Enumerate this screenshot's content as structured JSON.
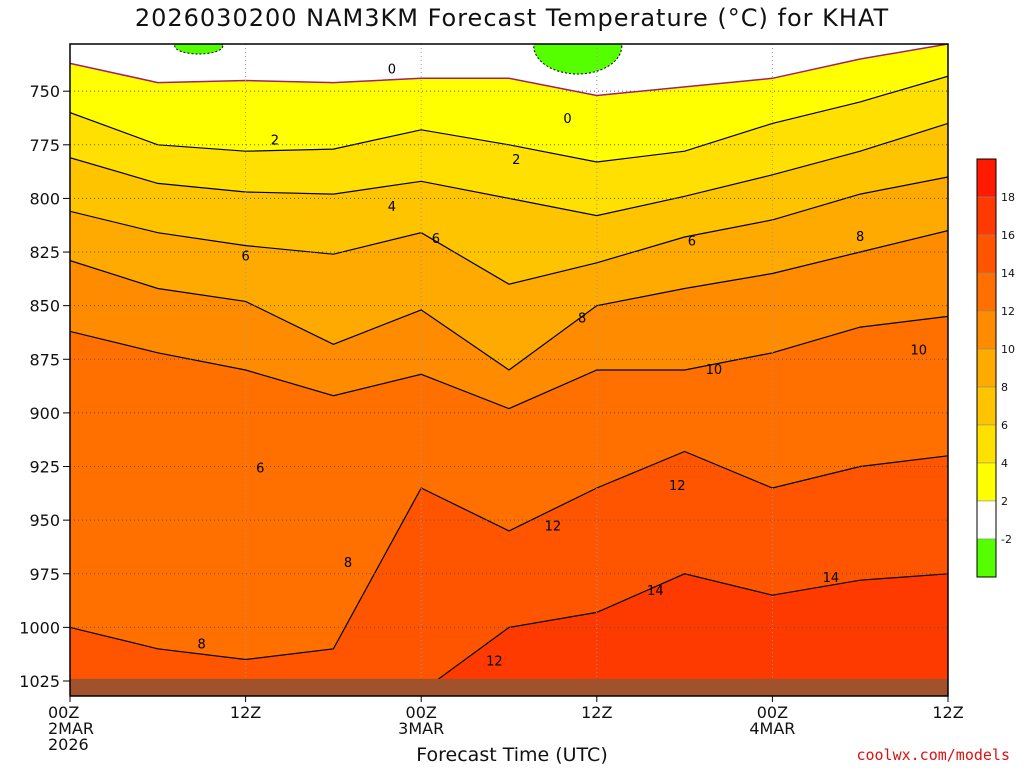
{
  "chart_data": {
    "type": "heatmap",
    "title": "2026030200 NAM3KM Forecast Temperature (°C) for KHAT",
    "xlabel": "Forecast Time (UTC)",
    "ylabel": "",
    "x_ticks": [
      {
        "lines": [
          "00Z",
          "2MAR",
          "2026"
        ]
      },
      {
        "lines": [
          "12Z"
        ]
      },
      {
        "lines": [
          "00Z",
          "3MAR"
        ]
      },
      {
        "lines": [
          "12Z"
        ]
      },
      {
        "lines": [
          "00Z",
          "4MAR"
        ]
      },
      {
        "lines": [
          "12Z"
        ]
      }
    ],
    "x_tick_hours": [
      0,
      12,
      24,
      36,
      48,
      60
    ],
    "xlim": [
      0,
      60
    ],
    "y_ticks": [
      750,
      775,
      800,
      825,
      850,
      875,
      900,
      925,
      950,
      975,
      1000,
      1025
    ],
    "ylim": [
      1032,
      728
    ],
    "ground_below_hpa": 1024,
    "grid": true,
    "colorbar": {
      "labels": [
        "18",
        "16",
        "14",
        "12",
        "10",
        "8",
        "6",
        "4",
        "2",
        "-2"
      ],
      "colors": [
        "#ff1a00",
        "#ff3a00",
        "#ff5500",
        "#ff7000",
        "#ff8c00",
        "#ffaa00",
        "#ffc400",
        "#ffe000",
        "#ffff00",
        "#ffffff",
        "#55ff00"
      ],
      "placement": "right"
    },
    "band_colors": {
      "lt0": "#ffffff",
      "b0_2": "#ffff00",
      "b2_4": "#ffe000",
      "b4_6": "#ffc400",
      "b6_8": "#ffaa00",
      "b8_10": "#ff8c00",
      "b10_12": "#ff7000",
      "b12_14": "#ff5500",
      "b14_16": "#ff3a00",
      "neg2": "#55ff00",
      "ground": "#a0522d"
    },
    "contours_hpa_by_hour": {
      "hours": [
        0,
        6,
        12,
        18,
        24,
        30,
        36,
        42,
        48,
        54,
        60
      ],
      "0": [
        737,
        746,
        745,
        746,
        744,
        744,
        752,
        748,
        744,
        735,
        728
      ],
      "2": [
        760,
        775,
        778,
        777,
        768,
        775,
        783,
        778,
        765,
        755,
        743
      ],
      "4": [
        781,
        793,
        797,
        798,
        792,
        800,
        808,
        799,
        789,
        778,
        765
      ],
      "6": [
        806,
        816,
        822,
        826,
        816,
        840,
        830,
        818,
        810,
        798,
        790
      ],
      "8": [
        829,
        842,
        848,
        868,
        852,
        880,
        850,
        842,
        835,
        825,
        815
      ],
      "10": [
        862,
        872,
        880,
        892,
        882,
        898,
        880,
        880,
        872,
        860,
        855
      ],
      "12": [
        1000,
        1010,
        1015,
        1010,
        935,
        955,
        935,
        918,
        935,
        925,
        920
      ],
      "14": [
        1030,
        1030,
        1030,
        1030,
        1030,
        1000,
        993,
        975,
        985,
        978,
        975
      ]
    },
    "annotations": [
      {
        "text": "0",
        "hour": 22.0,
        "hpa": 740
      },
      {
        "text": "0",
        "hour": 34.0,
        "hpa": 763
      },
      {
        "text": "2",
        "hour": 14.0,
        "hpa": 773
      },
      {
        "text": "2",
        "hour": 30.5,
        "hpa": 782
      },
      {
        "text": "4",
        "hour": 22.0,
        "hpa": 804
      },
      {
        "text": "6",
        "hour": 12.0,
        "hpa": 827
      },
      {
        "text": "6",
        "hour": 25.0,
        "hpa": 819
      },
      {
        "text": "6",
        "hour": 42.5,
        "hpa": 820
      },
      {
        "text": "8",
        "hour": 54.0,
        "hpa": 818
      },
      {
        "text": "8",
        "hour": 35.0,
        "hpa": 856
      },
      {
        "text": "10",
        "hour": 44.0,
        "hpa": 880
      },
      {
        "text": "10",
        "hour": 58.0,
        "hpa": 871
      },
      {
        "text": "12",
        "hour": 41.5,
        "hpa": 934
      },
      {
        "text": "12",
        "hour": 33.0,
        "hpa": 953
      },
      {
        "text": "12",
        "hour": 29.0,
        "hpa": 1016
      },
      {
        "text": "14",
        "hour": 40.0,
        "hpa": 983
      },
      {
        "text": "14",
        "hour": 52.0,
        "hpa": 977
      },
      {
        "text": "6",
        "hour": 13.0,
        "hpa": 926
      },
      {
        "text": "8",
        "hour": 19.0,
        "hpa": 970
      },
      {
        "text": "8",
        "hour": 9.0,
        "hpa": 1008
      }
    ]
  },
  "credit": "coolwx.com/models"
}
